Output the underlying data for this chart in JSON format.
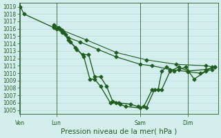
{
  "bg_color": "#d4eeed",
  "grid_color": "#b0d8d8",
  "line_color": "#1f5e1f",
  "xlabel": "Pression niveau de la mer( hPa )",
  "ylim": [
    1004.5,
    1019.5
  ],
  "yticks": [
    1005,
    1006,
    1007,
    1008,
    1009,
    1010,
    1011,
    1012,
    1013,
    1014,
    1015,
    1016,
    1017,
    1018,
    1019
  ],
  "day_positions": [
    0,
    3,
    10,
    14
  ],
  "day_labels": [
    "Ven",
    "Lun",
    "Sam",
    "Dim"
  ],
  "xlim": [
    -0.1,
    16.5
  ],
  "tick_fontsize": 5.5,
  "xlabel_fontsize": 7.5,
  "series": [
    {
      "x": [
        0.0,
        0.3,
        3.0,
        3.3,
        3.6,
        4.0,
        4.6,
        5.3,
        5.8,
        6.2,
        6.7,
        7.5,
        8.0,
        8.3,
        8.8,
        10.0,
        10.3,
        11.0,
        11.5,
        11.8,
        12.2,
        12.8,
        13.2,
        13.8,
        14.5,
        15.5,
        16.0
      ],
      "y": [
        1019.0,
        1018.0,
        1016.0,
        1016.0,
        1015.5,
        1014.5,
        1013.5,
        1012.2,
        1009.2,
        1009.2,
        1008.2,
        1006.0,
        1006.0,
        1005.8,
        1005.5,
        1005.3,
        1005.5,
        1007.8,
        1007.8,
        1010.3,
        1010.8,
        1010.3,
        1010.5,
        1010.8,
        1009.2,
        1010.3,
        1010.8
      ],
      "marker": "D",
      "markersize": 2.5,
      "lw": 1.0,
      "ls": "-"
    },
    {
      "x": [
        2.8,
        3.5,
        4.0,
        5.0,
        6.5,
        8.0,
        10.0,
        11.0,
        12.5,
        14.0,
        15.0,
        16.0
      ],
      "y": [
        1016.2,
        1015.5,
        1014.8,
        1014.2,
        1013.2,
        1012.2,
        1011.2,
        1011.0,
        1010.5,
        1010.2,
        1010.0,
        1010.5
      ],
      "marker": "D",
      "markersize": 2.5,
      "lw": 0.9,
      "ls": "-"
    },
    {
      "x": [
        2.8,
        3.2,
        3.5,
        3.8,
        4.2,
        4.7,
        5.2,
        5.7,
        6.2,
        6.7,
        7.2,
        7.7,
        8.2,
        9.2,
        9.8,
        10.5,
        11.2,
        11.8,
        12.5,
        13.2,
        14.0,
        15.5,
        16.2
      ],
      "y": [
        1016.5,
        1016.2,
        1015.8,
        1015.2,
        1014.2,
        1013.2,
        1012.5,
        1012.5,
        1009.5,
        1009.5,
        1008.2,
        1006.2,
        1006.0,
        1005.8,
        1005.5,
        1005.3,
        1007.8,
        1007.8,
        1010.3,
        1010.8,
        1010.3,
        1010.5,
        1010.8
      ],
      "marker": "D",
      "markersize": 2.5,
      "lw": 1.0,
      "ls": "-"
    },
    {
      "x": [
        2.8,
        3.5,
        5.5,
        8.0,
        10.5,
        13.0,
        15.5,
        16.2
      ],
      "y": [
        1016.3,
        1015.8,
        1014.5,
        1012.8,
        1011.8,
        1011.2,
        1011.0,
        1010.8
      ],
      "marker": "D",
      "markersize": 2.5,
      "lw": 0.8,
      "ls": "-"
    }
  ]
}
